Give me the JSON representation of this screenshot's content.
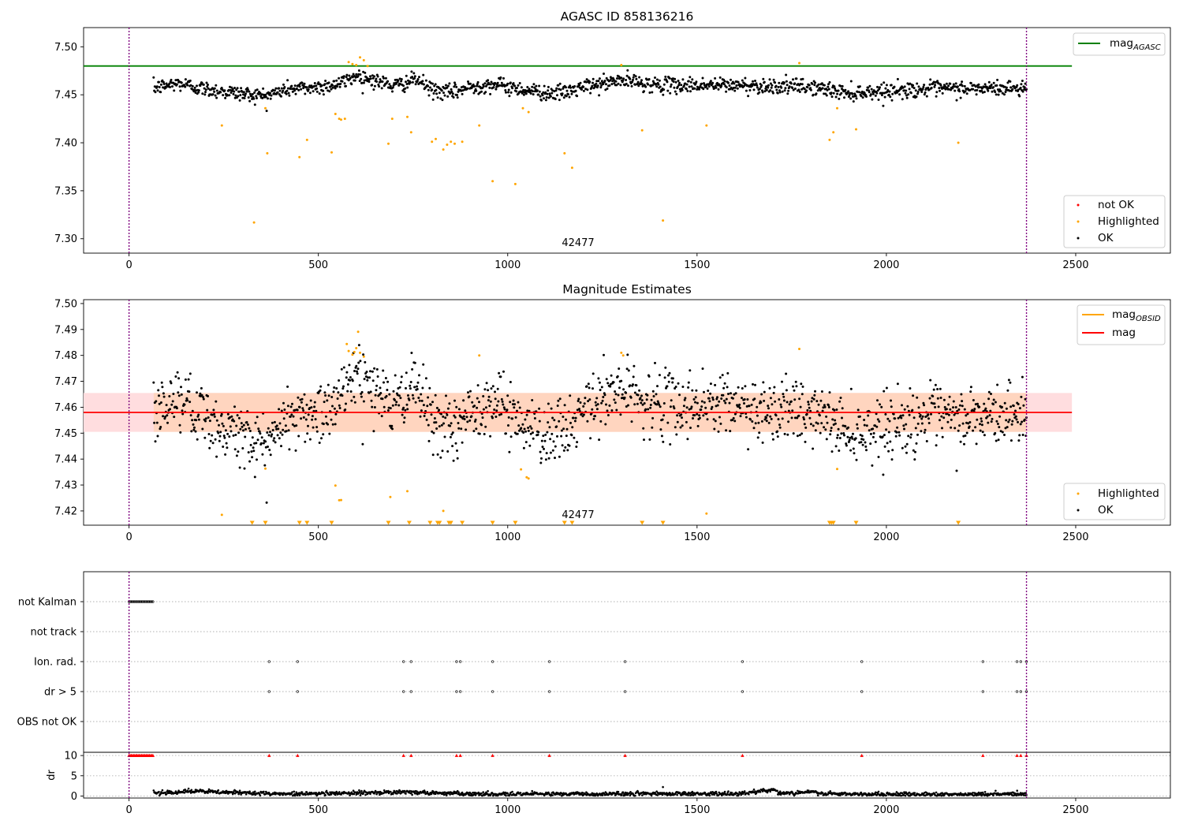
{
  "chart_data": [
    {
      "type": "scatter",
      "title": "AGASC ID 858136216",
      "xlim": [
        -120,
        2750
      ],
      "ylim": [
        7.285,
        7.52
      ],
      "x_ticks": [
        0,
        500,
        1000,
        1500,
        2000,
        2500
      ],
      "y_ticks": [
        7.3,
        7.35,
        7.4,
        7.45,
        7.5
      ],
      "x_tick_labels": [
        "0",
        "500",
        "1000",
        "1500",
        "2000",
        "2500"
      ],
      "y_tick_labels": [
        "7.30",
        "7.35",
        "7.40",
        "7.45",
        "7.50"
      ],
      "vlines": [
        0,
        2370
      ],
      "hline": {
        "y": 7.48,
        "x_range": [
          -120,
          2490
        ],
        "color": "#008000"
      },
      "annotation": {
        "text": "42477",
        "x": 1190,
        "y": 7.293
      },
      "colors": {
        "ok": "#000000",
        "highlighted": "#ffa500",
        "not_ok": "#ff0000",
        "vline": "#800080"
      },
      "legend_upper": [
        {
          "label": "mag",
          "sub": "AGASC",
          "kind": "line",
          "color": "#008000"
        }
      ],
      "legend_lower": [
        {
          "label": "not OK",
          "kind": "marker",
          "color": "#ff0000"
        },
        {
          "label": "Highlighted",
          "kind": "marker",
          "color": "#ffa500"
        },
        {
          "label": "OK",
          "kind": "marker",
          "color": "#000000"
        }
      ],
      "legend_placement": [
        "upper right",
        "lower right"
      ],
      "series": [
        {
          "name": "OK",
          "color": "#000000",
          "x_range": [
            65,
            2370
          ],
          "n": 1500,
          "trend": [
            [
              65,
              7.457
            ],
            [
              130,
              7.462
            ],
            [
              200,
              7.456
            ],
            [
              300,
              7.451
            ],
            [
              360,
              7.449
            ],
            [
              420,
              7.456
            ],
            [
              500,
              7.458
            ],
            [
              560,
              7.462
            ],
            [
              600,
              7.47
            ],
            [
              640,
              7.466
            ],
            [
              700,
              7.459
            ],
            [
              760,
              7.466
            ],
            [
              800,
              7.455
            ],
            [
              850,
              7.452
            ],
            [
              900,
              7.458
            ],
            [
              960,
              7.461
            ],
            [
              1050,
              7.455
            ],
            [
              1100,
              7.452
            ],
            [
              1150,
              7.452
            ],
            [
              1200,
              7.458
            ],
            [
              1300,
              7.465
            ],
            [
              1400,
              7.46
            ],
            [
              1600,
              7.46
            ],
            [
              1800,
              7.458
            ],
            [
              1900,
              7.452
            ],
            [
              2100,
              7.456
            ],
            [
              2370,
              7.457
            ]
          ],
          "scatter": 0.004
        },
        {
          "name": "Highlighted",
          "color": "#ffa500",
          "x": [
            245,
            330,
            360,
            365,
            450,
            470,
            535,
            545,
            555,
            560,
            570,
            580,
            590,
            600,
            610,
            620,
            630,
            685,
            695,
            735,
            745,
            800,
            810,
            830,
            840,
            850,
            860,
            880,
            925,
            960,
            1020,
            1040,
            1055,
            1150,
            1170,
            1300,
            1355,
            1410,
            1525,
            1770,
            1850,
            1860,
            1870,
            1920,
            2190
          ],
          "y": [
            7.418,
            7.317,
            7.436,
            7.389,
            7.385,
            7.403,
            7.39,
            7.43,
            7.425,
            7.424,
            7.425,
            7.484,
            7.482,
            7.481,
            7.489,
            7.486,
            7.48,
            7.399,
            7.425,
            7.427,
            7.411,
            7.401,
            7.404,
            7.393,
            7.398,
            7.401,
            7.399,
            7.401,
            7.418,
            7.36,
            7.357,
            7.436,
            7.432,
            7.389,
            7.374,
            7.481,
            7.413,
            7.319,
            7.418,
            7.483,
            7.403,
            7.411,
            7.436,
            7.414,
            7.4
          ]
        }
      ]
    },
    {
      "type": "scatter",
      "title": "Magnitude Estimates",
      "xlim": [
        -120,
        2750
      ],
      "ylim": [
        7.4145,
        7.5015
      ],
      "x_ticks": [
        0,
        500,
        1000,
        1500,
        2000,
        2500
      ],
      "y_ticks": [
        7.42,
        7.43,
        7.44,
        7.45,
        7.46,
        7.47,
        7.48,
        7.49,
        7.5
      ],
      "x_tick_labels": [
        "0",
        "500",
        "1000",
        "1500",
        "2000",
        "2500"
      ],
      "y_tick_labels": [
        "7.42",
        "7.43",
        "7.44",
        "7.45",
        "7.46",
        "7.47",
        "7.48",
        "7.49",
        "7.50"
      ],
      "vlines": [
        0,
        2370
      ],
      "hline": {
        "y": 7.458,
        "x_range": [
          -120,
          2490
        ],
        "color": "#ff0000"
      },
      "band_red": {
        "y0": 7.4505,
        "y1": 7.4655,
        "x_range": [
          -120,
          2490
        ],
        "color": "#ffdddf"
      },
      "band_orange": {
        "y0": 7.4505,
        "y1": 7.4655,
        "x_range": [
          65,
          2370
        ],
        "color": "#ffd5bf"
      },
      "annotation": {
        "text": "42477",
        "x": 1190,
        "y": 7.4165
      },
      "legend_upper": [
        {
          "label": "mag",
          "sub": "OBSID",
          "kind": "line",
          "color": "#ffa500"
        },
        {
          "label": "mag",
          "kind": "line",
          "color": "#ff0000"
        }
      ],
      "legend_lower": [
        {
          "label": "Highlighted",
          "kind": "marker",
          "color": "#ffa500"
        },
        {
          "label": "OK",
          "kind": "marker",
          "color": "#000000"
        }
      ],
      "legend_placement": [
        "upper right",
        "lower right"
      ],
      "series": [
        {
          "name": "OK",
          "color": "#000000",
          "x_range": [
            65,
            2370
          ],
          "n": 1500,
          "scatter": 0.006
        },
        {
          "name": "Highlighted",
          "color": "#ffa500",
          "x": [
            245,
            360,
            545,
            555,
            560,
            575,
            580,
            590,
            595,
            600,
            605,
            610,
            620,
            690,
            735,
            830,
            925,
            1035,
            1050,
            1055,
            1300,
            1305,
            1525,
            1770,
            1870
          ],
          "y": [
            7.4185,
            7.4363,
            7.4298,
            7.4241,
            7.4242,
            7.4844,
            7.4817,
            7.4803,
            7.4813,
            7.4828,
            7.4891,
            7.481,
            7.4795,
            7.4254,
            7.4276,
            7.42,
            7.48,
            7.436,
            7.433,
            7.4325,
            7.481,
            7.48,
            7.419,
            7.4825,
            7.4362
          ]
        },
        {
          "name": "Highlighted (below range)",
          "color": "#ffa500",
          "x": [
            325,
            360,
            450,
            470,
            535,
            685,
            740,
            795,
            815,
            820,
            845,
            850,
            880,
            960,
            1020,
            1150,
            1170,
            1355,
            1410,
            1850,
            1855,
            1860,
            1920,
            2190
          ],
          "marker": "triangle-down",
          "y": [
            7.4145,
            7.4145,
            7.4145,
            7.4145,
            7.4145,
            7.4145,
            7.4145,
            7.4145,
            7.4145,
            7.4145,
            7.4145,
            7.4145,
            7.4145,
            7.4145,
            7.4145,
            7.4145,
            7.4145,
            7.4145,
            7.4145,
            7.4145,
            7.4145,
            7.4145,
            7.4145,
            7.4145
          ]
        }
      ]
    },
    {
      "type": "scatter",
      "title": "",
      "xlim": [
        -120,
        2750
      ],
      "categories": [
        "not Kalman",
        "not track",
        "Ion. rad.",
        "dr > 5",
        "OBS not OK"
      ],
      "x_ticks": [
        0,
        500,
        1000,
        1500,
        2000,
        2500
      ],
      "x_tick_labels": [
        "0",
        "500",
        "1000",
        "1500",
        "2000",
        "2500"
      ],
      "vlines": [
        0,
        2370
      ],
      "flags": {
        "not Kalman": {
          "x_range": [
            0,
            65
          ]
        },
        "not track": {
          "x": []
        },
        "Ion. rad.": {
          "x": [
            370,
            445,
            725,
            745,
            865,
            875,
            960,
            1110,
            1310,
            1620,
            1935,
            2255,
            2345,
            2355,
            2370
          ]
        },
        "dr > 5": {
          "x": [
            370,
            445,
            725,
            745,
            865,
            875,
            960,
            1110,
            1310,
            1620,
            1935,
            2255,
            2345,
            2355,
            2370
          ]
        },
        "OBS not OK": {
          "x": []
        }
      }
    },
    {
      "type": "scatter",
      "title": "",
      "ylabel": "dr",
      "xlim": [
        -120,
        2750
      ],
      "ylim": [
        -0.5,
        10.8
      ],
      "y_ticks": [
        0,
        5,
        10
      ],
      "y_tick_labels": [
        "0",
        "5",
        "10"
      ],
      "x_ticks": [
        0,
        500,
        1000,
        1500,
        2000,
        2500
      ],
      "x_tick_labels": [
        "0",
        "500",
        "1000",
        "1500",
        "2000",
        "2500"
      ],
      "vlines": [
        0,
        2370
      ],
      "clipped_marker": {
        "color": "#ff0000",
        "y": 10,
        "x_range_dense": [
          0,
          65
        ],
        "x": [
          370,
          445,
          725,
          745,
          865,
          875,
          960,
          1110,
          1310,
          1620,
          1935,
          2255,
          2345,
          2355,
          2370
        ]
      },
      "series": [
        {
          "name": "dr",
          "color": "#000000",
          "x_range": [
            65,
            2370
          ],
          "n": 1500,
          "trend": [
            [
              65,
              0.8
            ],
            [
              180,
              1.2
            ],
            [
              250,
              0.9
            ],
            [
              400,
              0.6
            ],
            [
              600,
              0.7
            ],
            [
              700,
              1.0
            ],
            [
              900,
              0.5
            ],
            [
              1200,
              0.5
            ],
            [
              1500,
              0.6
            ],
            [
              1600,
              0.5
            ],
            [
              1650,
              1.0
            ],
            [
              1700,
              1.5
            ],
            [
              1720,
              0.5
            ],
            [
              1800,
              1.0
            ],
            [
              1850,
              0.5
            ],
            [
              2000,
              0.4
            ],
            [
              2370,
              0.5
            ]
          ],
          "scatter": 0.25
        }
      ]
    }
  ]
}
